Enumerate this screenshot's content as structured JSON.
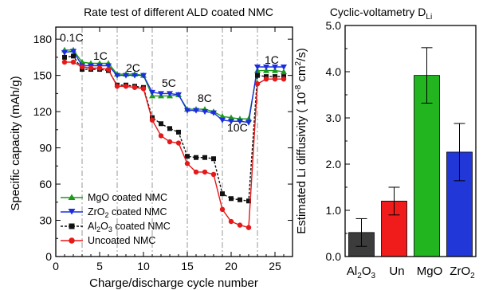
{
  "chart_data": [
    {
      "type": "line",
      "title": "Rate test of different ALD coated NMC",
      "xlabel": "Charge/discharge cycle number",
      "ylabel": "Specific capacity (mAh/g)",
      "xlim": [
        0,
        27
      ],
      "ylim": [
        0,
        190
      ],
      "xticks": [
        "0",
        "5",
        "10",
        "15",
        "20",
        "25"
      ],
      "yticks": [
        "0",
        "30",
        "60",
        "90",
        "120",
        "150",
        "180"
      ],
      "rate_labels": [
        "0.1C",
        "1C",
        "2C",
        "5C",
        "8C",
        "10C",
        "1C"
      ],
      "legend_position": "lower-left",
      "x": [
        1,
        2,
        3,
        4,
        5,
        6,
        7,
        8,
        9,
        10,
        11,
        12,
        13,
        14,
        15,
        16,
        17,
        18,
        19,
        20,
        21,
        22,
        23,
        24,
        25,
        26
      ],
      "series": [
        {
          "name": "MgO coated NMC",
          "color": "#1a9a1a",
          "marker": "triangle-up",
          "values": [
            171,
            171,
            161,
            160,
            160,
            160,
            151,
            151,
            151,
            150,
            133,
            133,
            133,
            134,
            122,
            122,
            122,
            120,
            116,
            115,
            114,
            114,
            154,
            154,
            154,
            153
          ]
        },
        {
          "name": "ZrO2 coated NMC",
          "color": "#1a2ee0",
          "marker": "triangle-down",
          "values": [
            169,
            170,
            158,
            158,
            158,
            158,
            150,
            150,
            150,
            150,
            136,
            135,
            135,
            134,
            121,
            121,
            120,
            119,
            113,
            112,
            112,
            111,
            157,
            157,
            157,
            157
          ]
        },
        {
          "name": "Al2O3 coated NMC",
          "color": "#111111",
          "marker": "square",
          "values": [
            165,
            166,
            155,
            155,
            155,
            154,
            142,
            142,
            141,
            140,
            115,
            110,
            106,
            103,
            83,
            82,
            82,
            81,
            52,
            48,
            47,
            46,
            150,
            149,
            149,
            149
          ]
        },
        {
          "name": "Uncoated NMC",
          "color": "#e51919",
          "marker": "circle",
          "values": [
            161,
            161,
            157,
            156,
            156,
            155,
            141,
            141,
            140,
            139,
            113,
            100,
            95,
            94,
            77,
            70,
            70,
            68,
            39,
            29,
            26,
            24,
            143,
            147,
            147,
            147
          ]
        }
      ]
    },
    {
      "type": "bar",
      "title": "Cyclic-voltametry D",
      "title_sub": "Li",
      "ylabel": "Estimated Li diffusivity ( 10-8 cm2/s)",
      "ylim": [
        0,
        5.0
      ],
      "yticks": [
        "0.0",
        "1.0",
        "2.0",
        "3.0",
        "4.0",
        "5.0"
      ],
      "categories": [
        "Al2O3",
        "Un",
        "MgO",
        "ZrO2"
      ],
      "values": [
        0.52,
        1.2,
        3.92,
        2.26
      ],
      "errors": [
        0.3,
        0.3,
        0.6,
        0.62
      ],
      "colors": [
        "#3c3c3c",
        "#f01c1c",
        "#22b51f",
        "#2237d8"
      ]
    }
  ]
}
